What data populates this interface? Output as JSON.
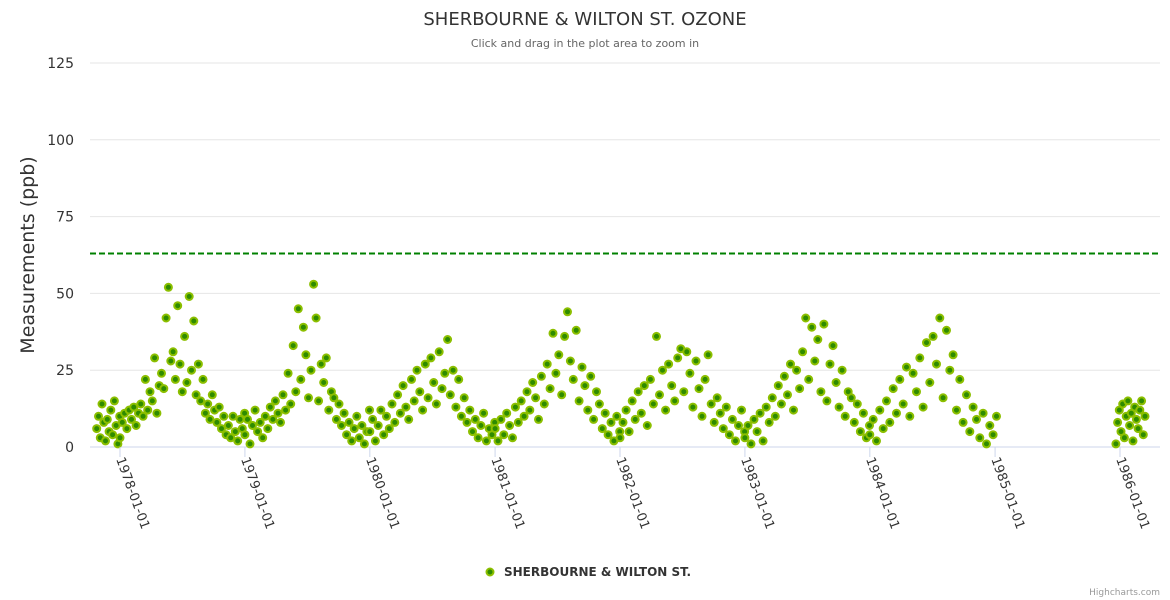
{
  "chart_data": {
    "type": "scatter",
    "title": "SHERBOURNE & WILTON ST. OZONE",
    "subtitle": "Click and drag in the plot area to zoom in",
    "ylabel": "Measurements (ppb)",
    "xlabel": "",
    "ylim": [
      0,
      125
    ],
    "yticks": [
      "0",
      "25",
      "50",
      "75",
      "100",
      "125"
    ],
    "xlim": [
      "1977-10-01",
      "1986-04-01"
    ],
    "xticks": [
      "1978-01-01",
      "1979-01-01",
      "1980-01-01",
      "1981-01-01",
      "1982-01-01",
      "1983-01-01",
      "1984-01-01",
      "1985-01-01",
      "1986-01-01"
    ],
    "grid": true,
    "reference_line": {
      "value": 63,
      "style": "dashed",
      "color": "#008000"
    },
    "legend": {
      "position": "bottom-center"
    },
    "credit": "Highcharts.com",
    "series": [
      {
        "name": "SHERBOURNE & WILTON ST.",
        "fill_color": "#2e8b00",
        "stroke_color": "#8cbf00",
        "segments": [
          {
            "start": "1977-10-25",
            "end": "1977-12-31",
            "values": [
              6,
              10,
              3,
              14,
              8,
              2,
              9,
              5,
              12,
              4,
              15,
              7,
              1,
              10
            ]
          },
          {
            "start": "1978-01-01",
            "end": "1978-12-31",
            "values": [
              3,
              8,
              11,
              6,
              12,
              9,
              13,
              7,
              11,
              14,
              10,
              22,
              12,
              18,
              15,
              29,
              11,
              20,
              24,
              19,
              42,
              52,
              28,
              31,
              22,
              46,
              27,
              18,
              36,
              21,
              49,
              25,
              41,
              17,
              27,
              15,
              22,
              11,
              14,
              9,
              17,
              12,
              8,
              13,
              6,
              10,
              4,
              7,
              3,
              10,
              5,
              2,
              9,
              6,
              11
            ]
          },
          {
            "start": "1979-01-01",
            "end": "1979-12-31",
            "values": [
              4,
              9,
              1,
              7,
              12,
              5,
              8,
              3,
              10,
              6,
              13,
              9,
              15,
              11,
              8,
              17,
              12,
              24,
              14,
              33,
              18,
              45,
              22,
              39,
              30,
              16,
              25,
              53,
              42,
              15,
              27,
              21,
              29,
              12,
              18,
              16,
              9,
              14,
              7,
              11,
              4,
              8,
              2,
              6,
              10,
              3,
              7,
              1,
              5,
              12
            ]
          },
          {
            "start": "1980-01-01",
            "end": "1980-12-31",
            "values": [
              5,
              9,
              2,
              7,
              12,
              4,
              10,
              6,
              14,
              8,
              17,
              11,
              20,
              13,
              9,
              22,
              15,
              25,
              18,
              12,
              27,
              16,
              29,
              21,
              14,
              31,
              19,
              24,
              35,
              17,
              25,
              13,
              22,
              10,
              16,
              8,
              12,
              5,
              9,
              3,
              7,
              11,
              2,
              6,
              4,
              8
            ]
          },
          {
            "start": "1981-01-01",
            "end": "1981-12-31",
            "values": [
              6,
              2,
              9,
              4,
              11,
              7,
              3,
              13,
              8,
              15,
              10,
              18,
              12,
              21,
              16,
              9,
              23,
              14,
              27,
              19,
              37,
              24,
              30,
              17,
              36,
              44,
              28,
              22,
              38,
              15,
              26,
              20,
              12,
              23,
              9,
              18,
              14,
              6,
              11,
              4,
              8,
              2,
              10,
              5
            ]
          },
          {
            "start": "1982-01-01",
            "end": "1982-12-31",
            "values": [
              3,
              8,
              12,
              5,
              15,
              9,
              18,
              11,
              20,
              7,
              22,
              14,
              36,
              17,
              25,
              12,
              27,
              20,
              15,
              29,
              32,
              18,
              31,
              24,
              13,
              28,
              19,
              10,
              22,
              30,
              14,
              8,
              16,
              11,
              6,
              13,
              4,
              9,
              2,
              7,
              12,
              5
            ]
          },
          {
            "start": "1983-01-01",
            "end": "1983-12-31",
            "values": [
              3,
              7,
              1,
              9,
              5,
              11,
              2,
              13,
              8,
              16,
              10,
              20,
              14,
              23,
              17,
              27,
              12,
              25,
              19,
              31,
              42,
              22,
              39,
              28,
              35,
              18,
              40,
              15,
              27,
              33,
              21,
              13,
              25,
              10,
              18,
              16,
              8,
              14,
              5,
              11,
              3,
              7
            ]
          },
          {
            "start": "1984-01-01",
            "end": "1985-01-05",
            "values": [
              4,
              9,
              2,
              12,
              6,
              15,
              8,
              19,
              11,
              22,
              14,
              26,
              10,
              24,
              18,
              29,
              13,
              34,
              21,
              36,
              27,
              42,
              16,
              38,
              25,
              30,
              12,
              22,
              8,
              17,
              5,
              13,
              9,
              3,
              11,
              1,
              7,
              4,
              10
            ]
          },
          {
            "start": "1985-12-20",
            "end": "1986-03-15",
            "values": [
              1,
              8,
              12,
              5,
              14,
              3,
              10,
              15,
              7,
              11,
              2,
              13,
              9,
              6,
              12,
              15,
              4,
              10
            ]
          }
        ]
      }
    ]
  }
}
